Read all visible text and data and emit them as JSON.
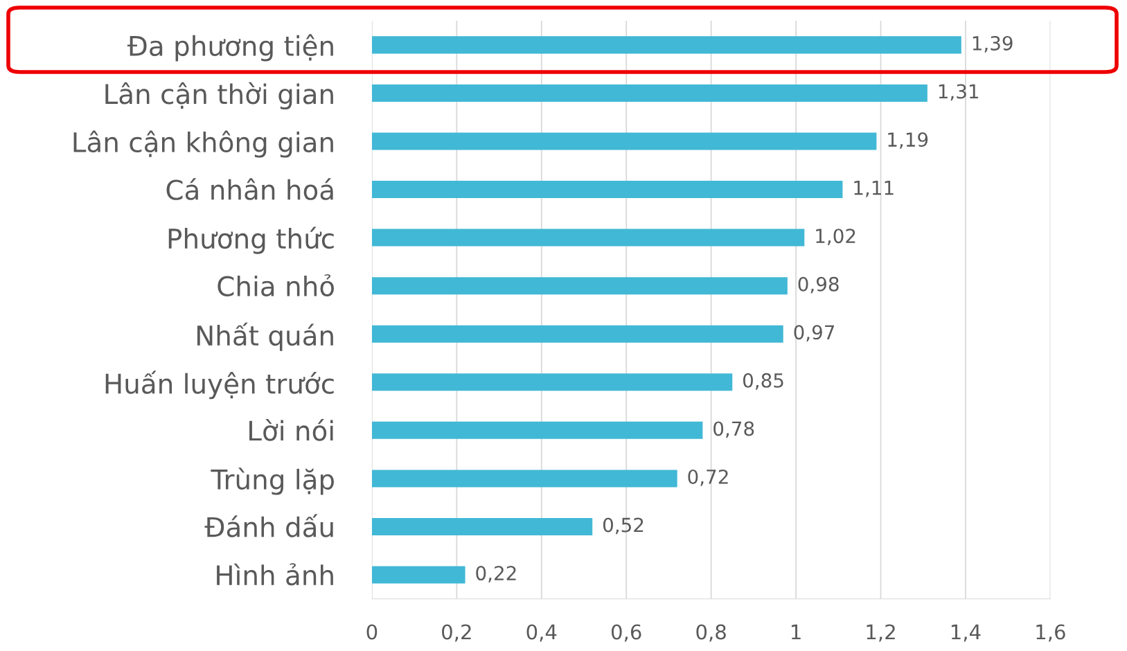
{
  "chart_data": {
    "type": "bar",
    "orientation": "horizontal",
    "categories": [
      "Đa phương tiện",
      "Lân cận thời gian",
      "Lân cận không gian",
      "Cá nhân hoá",
      "Phương thức",
      "Chia nhỏ",
      "Nhất quán",
      "Huấn luyện trước",
      "Lời nói",
      "Trùng lặp",
      "Đánh dấu",
      "Hình ảnh"
    ],
    "values": [
      1.39,
      1.31,
      1.19,
      1.11,
      1.02,
      0.98,
      0.97,
      0.85,
      0.78,
      0.72,
      0.52,
      0.22
    ],
    "value_labels": [
      "1,39",
      "1,31",
      "1,19",
      "1,11",
      "1,02",
      "0,98",
      "0,97",
      "0,85",
      "0,78",
      "0,72",
      "0,52",
      "0,22"
    ],
    "color": "#41b8d5",
    "xlim": [
      0,
      1.6
    ],
    "xticks": [
      0,
      {
        "value": 0.2,
        "label": "0,2"
      },
      {
        "value": 0.4,
        "label": "0,4"
      },
      {
        "value": 0.6,
        "label": "0,6"
      },
      {
        "value": 0.8,
        "label": "0,8"
      },
      1,
      {
        "value": 1.2,
        "label": "1,2"
      },
      {
        "value": 1.4,
        "label": "1,4"
      },
      {
        "value": 1.6,
        "label": "1,6"
      }
    ],
    "grid": "x",
    "legend": false
  }
}
